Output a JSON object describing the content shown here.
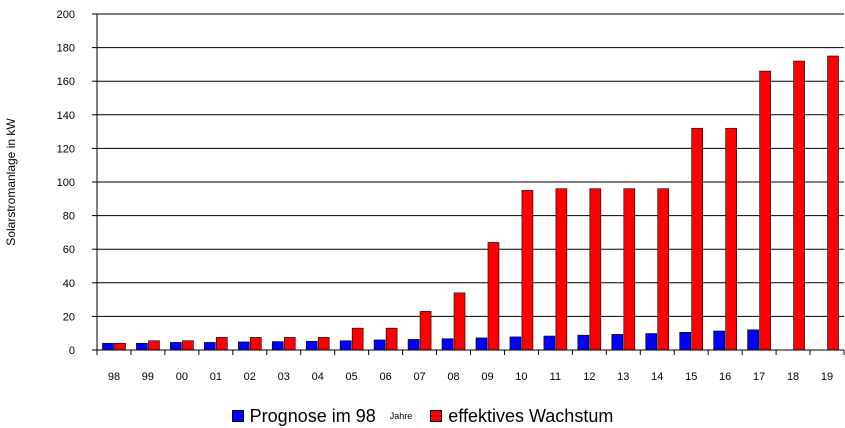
{
  "chart_data": {
    "type": "bar",
    "title": "",
    "xlabel": "Jahre",
    "ylabel": "Solarstromanlage in kW",
    "ylim": [
      0,
      200
    ],
    "yticks": [
      0,
      20,
      40,
      60,
      80,
      100,
      120,
      140,
      160,
      180,
      200
    ],
    "grid": true,
    "legend_position": "bottom",
    "categories": [
      "98",
      "99",
      "00",
      "01",
      "02",
      "03",
      "04",
      "05",
      "06",
      "07",
      "08",
      "09",
      "10",
      "11",
      "12",
      "13",
      "14",
      "15",
      "16",
      "17",
      "18",
      "19"
    ],
    "series": [
      {
        "name": "Prognose im 98",
        "color": "#0000ff",
        "values": [
          4,
          4,
          4.5,
          4.5,
          4.8,
          5,
          5.2,
          5.5,
          6,
          6.3,
          6.7,
          7.2,
          7.8,
          8.3,
          8.8,
          9.3,
          9.8,
          10.5,
          11.3,
          12,
          null,
          null
        ]
      },
      {
        "name": "effektives Wachstum",
        "color": "#ff0000",
        "values": [
          4,
          5.5,
          5.5,
          7.5,
          7.5,
          7.5,
          7.5,
          13,
          13,
          23,
          34,
          64,
          95,
          96,
          96,
          96,
          96,
          132,
          132,
          166,
          172,
          175
        ]
      }
    ]
  }
}
